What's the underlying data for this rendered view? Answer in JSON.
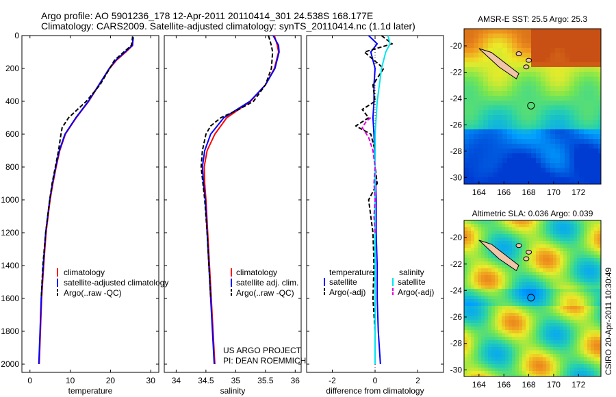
{
  "header": {
    "title_line1": "Argo profile: AO 5901236_178 12-Apr-2011 20110414_301 24.538S 168.177E",
    "title_line2": "Climatology: CARS2009. Satellite-adjusted climatology: synTS_20110414.nc (1.1d later)"
  },
  "side_text": "CSIRO 20-Apr-2011 10:30:49",
  "project_text": [
    "US ARGO PROJECT",
    "PI: DEAN ROEMMICH"
  ],
  "colors": {
    "climatology": "#ff0000",
    "satellite": "#0000ff",
    "argo": "#000000",
    "sat_salinity": "#00e5ee",
    "argo_salinity": "#e000e0"
  },
  "chart_data": [
    {
      "type": "line",
      "xlabel": "temperature",
      "ylabel": "",
      "xlim": [
        -2,
        32
      ],
      "ylim": [
        2050,
        0
      ],
      "x_ticks": [
        0,
        10,
        20,
        30
      ],
      "y_ticks": [
        0,
        200,
        400,
        600,
        800,
        1000,
        1200,
        1400,
        1600,
        1800,
        2000
      ],
      "legend": [
        "climatology",
        "satellite-adjusted climatology",
        "Argo(..raw -QC)"
      ],
      "legend_position": "lower-right",
      "series": [
        {
          "name": "climatology",
          "depth": [
            10,
            60,
            100,
            150,
            200,
            300,
            400,
            500,
            600,
            700,
            800,
            900,
            1000,
            1200,
            1400,
            1600,
            1800,
            2000
          ],
          "values": [
            25.6,
            25.5,
            23.8,
            21.5,
            19.8,
            17.2,
            14.6,
            11.5,
            8.8,
            7.4,
            6.5,
            5.7,
            5.0,
            4.0,
            3.4,
            2.9,
            2.6,
            2.3
          ]
        },
        {
          "name": "satellite-adjusted climatology",
          "depth": [
            10,
            60,
            100,
            150,
            200,
            300,
            400,
            500,
            600,
            700,
            800,
            900,
            1000,
            1200,
            1400,
            1600,
            1800,
            2000
          ],
          "values": [
            25.7,
            25.4,
            23.6,
            21.3,
            19.7,
            17.1,
            14.5,
            11.4,
            8.7,
            7.3,
            6.4,
            5.6,
            4.9,
            3.9,
            3.3,
            2.8,
            2.5,
            2.2
          ]
        },
        {
          "name": "Argo(..raw -QC)",
          "depth": [
            5,
            60,
            100,
            150,
            200,
            300,
            400,
            500,
            560,
            600,
            700,
            800,
            900,
            1000,
            1200,
            1400,
            1600
          ],
          "values": [
            25.5,
            25.2,
            23.3,
            21.0,
            19.8,
            17.4,
            14.0,
            9.6,
            8.0,
            7.7,
            7.1,
            6.3,
            5.5,
            4.9,
            3.9,
            3.2,
            2.8
          ]
        }
      ]
    },
    {
      "type": "line",
      "xlabel": "salinity",
      "ylabel": "",
      "xlim": [
        33.8,
        36.1
      ],
      "ylim": [
        2050,
        0
      ],
      "x_ticks": [
        34,
        34.5,
        35,
        35.5,
        36
      ],
      "legend": [
        "climatology",
        "satellite adj. clim.",
        "Argo(..raw -QC)"
      ],
      "legend_position": "lower-right",
      "series": [
        {
          "name": "climatology",
          "depth": [
            0,
            60,
            100,
            200,
            300,
            400,
            450,
            500,
            600,
            700,
            800,
            900,
            1000,
            1200,
            1400,
            1600,
            1800,
            2000
          ],
          "values": [
            35.65,
            35.7,
            35.72,
            35.65,
            35.5,
            35.25,
            35.05,
            34.85,
            34.65,
            34.52,
            34.47,
            34.48,
            34.5,
            34.53,
            34.56,
            34.59,
            34.62,
            34.65
          ]
        },
        {
          "name": "satellite adj. clim.",
          "depth": [
            0,
            60,
            100,
            200,
            300,
            400,
            450,
            500,
            600,
            700,
            800,
            900,
            1000,
            1200,
            1400,
            1600,
            1800,
            2000
          ],
          "values": [
            35.63,
            35.72,
            35.73,
            35.66,
            35.5,
            35.24,
            35.02,
            34.8,
            34.58,
            34.48,
            34.44,
            34.46,
            34.49,
            34.52,
            34.55,
            34.58,
            34.61,
            34.64
          ]
        },
        {
          "name": "Argo(..raw -QC)",
          "depth": [
            0,
            60,
            100,
            200,
            300,
            400,
            450,
            500,
            550,
            600,
            700,
            800,
            900,
            1000,
            1200,
            1400,
            1600
          ],
          "values": [
            35.55,
            35.6,
            35.62,
            35.6,
            35.5,
            35.3,
            35.05,
            34.75,
            34.58,
            34.5,
            34.44,
            34.42,
            34.45,
            34.48,
            34.52,
            34.55,
            34.58
          ]
        }
      ]
    },
    {
      "type": "line",
      "xlabel": "difference from climatology",
      "ylabel": "",
      "xlim": [
        -3.2,
        3.2
      ],
      "ylim": [
        2050,
        0
      ],
      "x_ticks": [
        -2,
        0,
        2
      ],
      "legend": [
        "temperature",
        "satellite",
        "Argo(-adj)",
        "salinity",
        "satellite",
        "Argo(-adj)"
      ],
      "legend_position": "lower-center",
      "series": [
        {
          "name": "temperature satellite",
          "depth": [
            0,
            50,
            100,
            200,
            300,
            400,
            500,
            600,
            800,
            1000,
            1200,
            1400,
            1600,
            1800,
            2000
          ],
          "values": [
            -0.3,
            0.1,
            -0.2,
            0.0,
            -0.05,
            -0.05,
            -0.1,
            -0.05,
            0.0,
            0.05,
            0.05,
            0.1,
            0.1,
            0.15,
            0.25
          ]
        },
        {
          "name": "temperature Argo(-adj)",
          "depth": [
            0,
            50,
            100,
            200,
            300,
            400,
            450,
            500,
            550,
            600,
            700,
            800,
            900,
            1000,
            1200,
            1400,
            1600,
            1800
          ],
          "values": [
            0.3,
            0.8,
            -0.5,
            0.4,
            -0.1,
            0.0,
            -0.6,
            -0.3,
            -0.9,
            -0.2,
            0.0,
            0.0,
            0.1,
            -0.3,
            -0.1,
            -0.05,
            -0.1,
            0.0
          ]
        },
        {
          "name": "salinity satellite",
          "depth": [
            0,
            50,
            100,
            200,
            300,
            400,
            500,
            600,
            800,
            1000,
            1200,
            1400,
            1600,
            1800,
            2000
          ],
          "values": [
            0.6,
            0.7,
            0.5,
            0.3,
            0.2,
            0.1,
            0.05,
            0.0,
            0.0,
            0.0,
            0.0,
            0.0,
            0.0,
            0.0,
            0.0
          ]
        },
        {
          "name": "salinity Argo(-adj)",
          "depth": [
            500,
            520,
            560,
            620,
            700,
            800,
            900,
            1000,
            1100,
            1200
          ],
          "values": [
            -0.2,
            -0.4,
            -0.6,
            -0.3,
            -0.1,
            0.0,
            -0.05,
            0.0,
            -0.05,
            0.0
          ]
        }
      ]
    },
    {
      "type": "heatmap",
      "title": "AMSR-E SST: 25.5 Argo: 25.3",
      "x_ticks": [
        164,
        166,
        168,
        170,
        172
      ],
      "y_ticks": [
        -20,
        -22,
        -24,
        -26,
        -28,
        -30
      ],
      "xlim": [
        162.8,
        173.8
      ],
      "ylim": [
        -30.5,
        -18.7
      ],
      "marker": [
        168.18,
        -24.54
      ]
    },
    {
      "type": "heatmap",
      "title": "Altimetric SLA: 0.036 Argo: 0.039",
      "x_ticks": [
        164,
        166,
        168,
        170,
        172
      ],
      "y_ticks": [
        -20,
        -22,
        -24,
        -26,
        -28,
        -30
      ],
      "xlim": [
        162.8,
        173.8
      ],
      "ylim": [
        -30.5,
        -18.7
      ],
      "marker": [
        168.18,
        -24.54
      ]
    }
  ]
}
